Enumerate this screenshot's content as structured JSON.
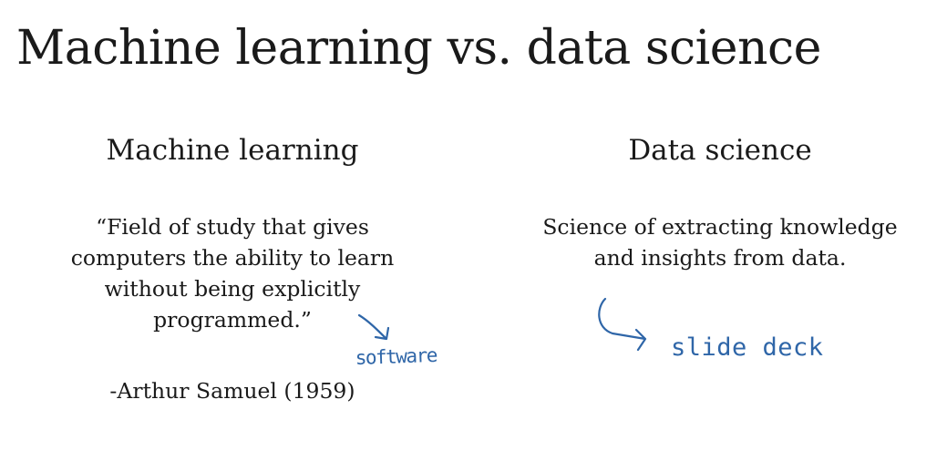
{
  "slide": {
    "title": "Machine learning vs. data science"
  },
  "machine_learning": {
    "heading": "Machine learning",
    "quote_lines": [
      "“Field of study that gives",
      "computers the ability to learn",
      "without being explicitly",
      "programmed.”"
    ],
    "attribution": "-Arthur Samuel (1959)"
  },
  "data_science": {
    "heading": "Data science",
    "definition_lines": [
      "Science of extracting knowledge",
      "and insights from data."
    ]
  },
  "annotations": {
    "ml_note": "software",
    "ds_note": "slide deck",
    "ink_color": "#2f66a8"
  }
}
